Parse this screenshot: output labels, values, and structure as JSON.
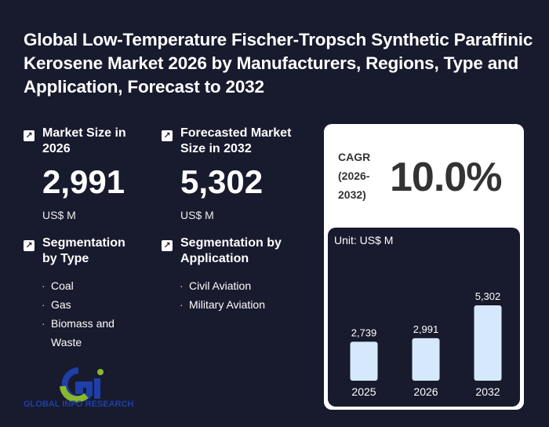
{
  "title": "Global Low-Temperature Fischer-Tropsch Synthetic Paraffinic Kerosene Market 2026 by Manufacturers, Regions, Type and Application, Forecast to 2032",
  "market_size": {
    "label": "Market Size in 2026",
    "value": "2,991",
    "unit": "US$ M"
  },
  "forecast": {
    "label": "Forecasted Market Size in 2032",
    "value": "5,302",
    "unit": "US$ M"
  },
  "seg_type": {
    "label": "Segmentation by Type",
    "items": [
      "Coal",
      "Gas",
      "Biomass and Waste"
    ]
  },
  "seg_app": {
    "label": "Segmentation by Application",
    "items": [
      "Civil Aviation",
      "Military Aviation"
    ]
  },
  "cagr": {
    "label": "CAGR (2026-2032)",
    "value": "10.0%"
  },
  "logo_text": "GLOBAL INFO RESEARCH",
  "icons": {
    "section": "arrow-up-right-icon"
  },
  "colors": {
    "background": "#181a2d",
    "bar": "#d6e9fc"
  },
  "chart_data": {
    "type": "bar",
    "unit_label": "Unit: US$ M",
    "categories": [
      "2025",
      "2026",
      "2032"
    ],
    "values": [
      2739,
      2991,
      5302
    ],
    "value_labels": [
      "2,739",
      "2,991",
      "5,302"
    ],
    "ylim": [
      0,
      5302
    ],
    "grid": false
  }
}
